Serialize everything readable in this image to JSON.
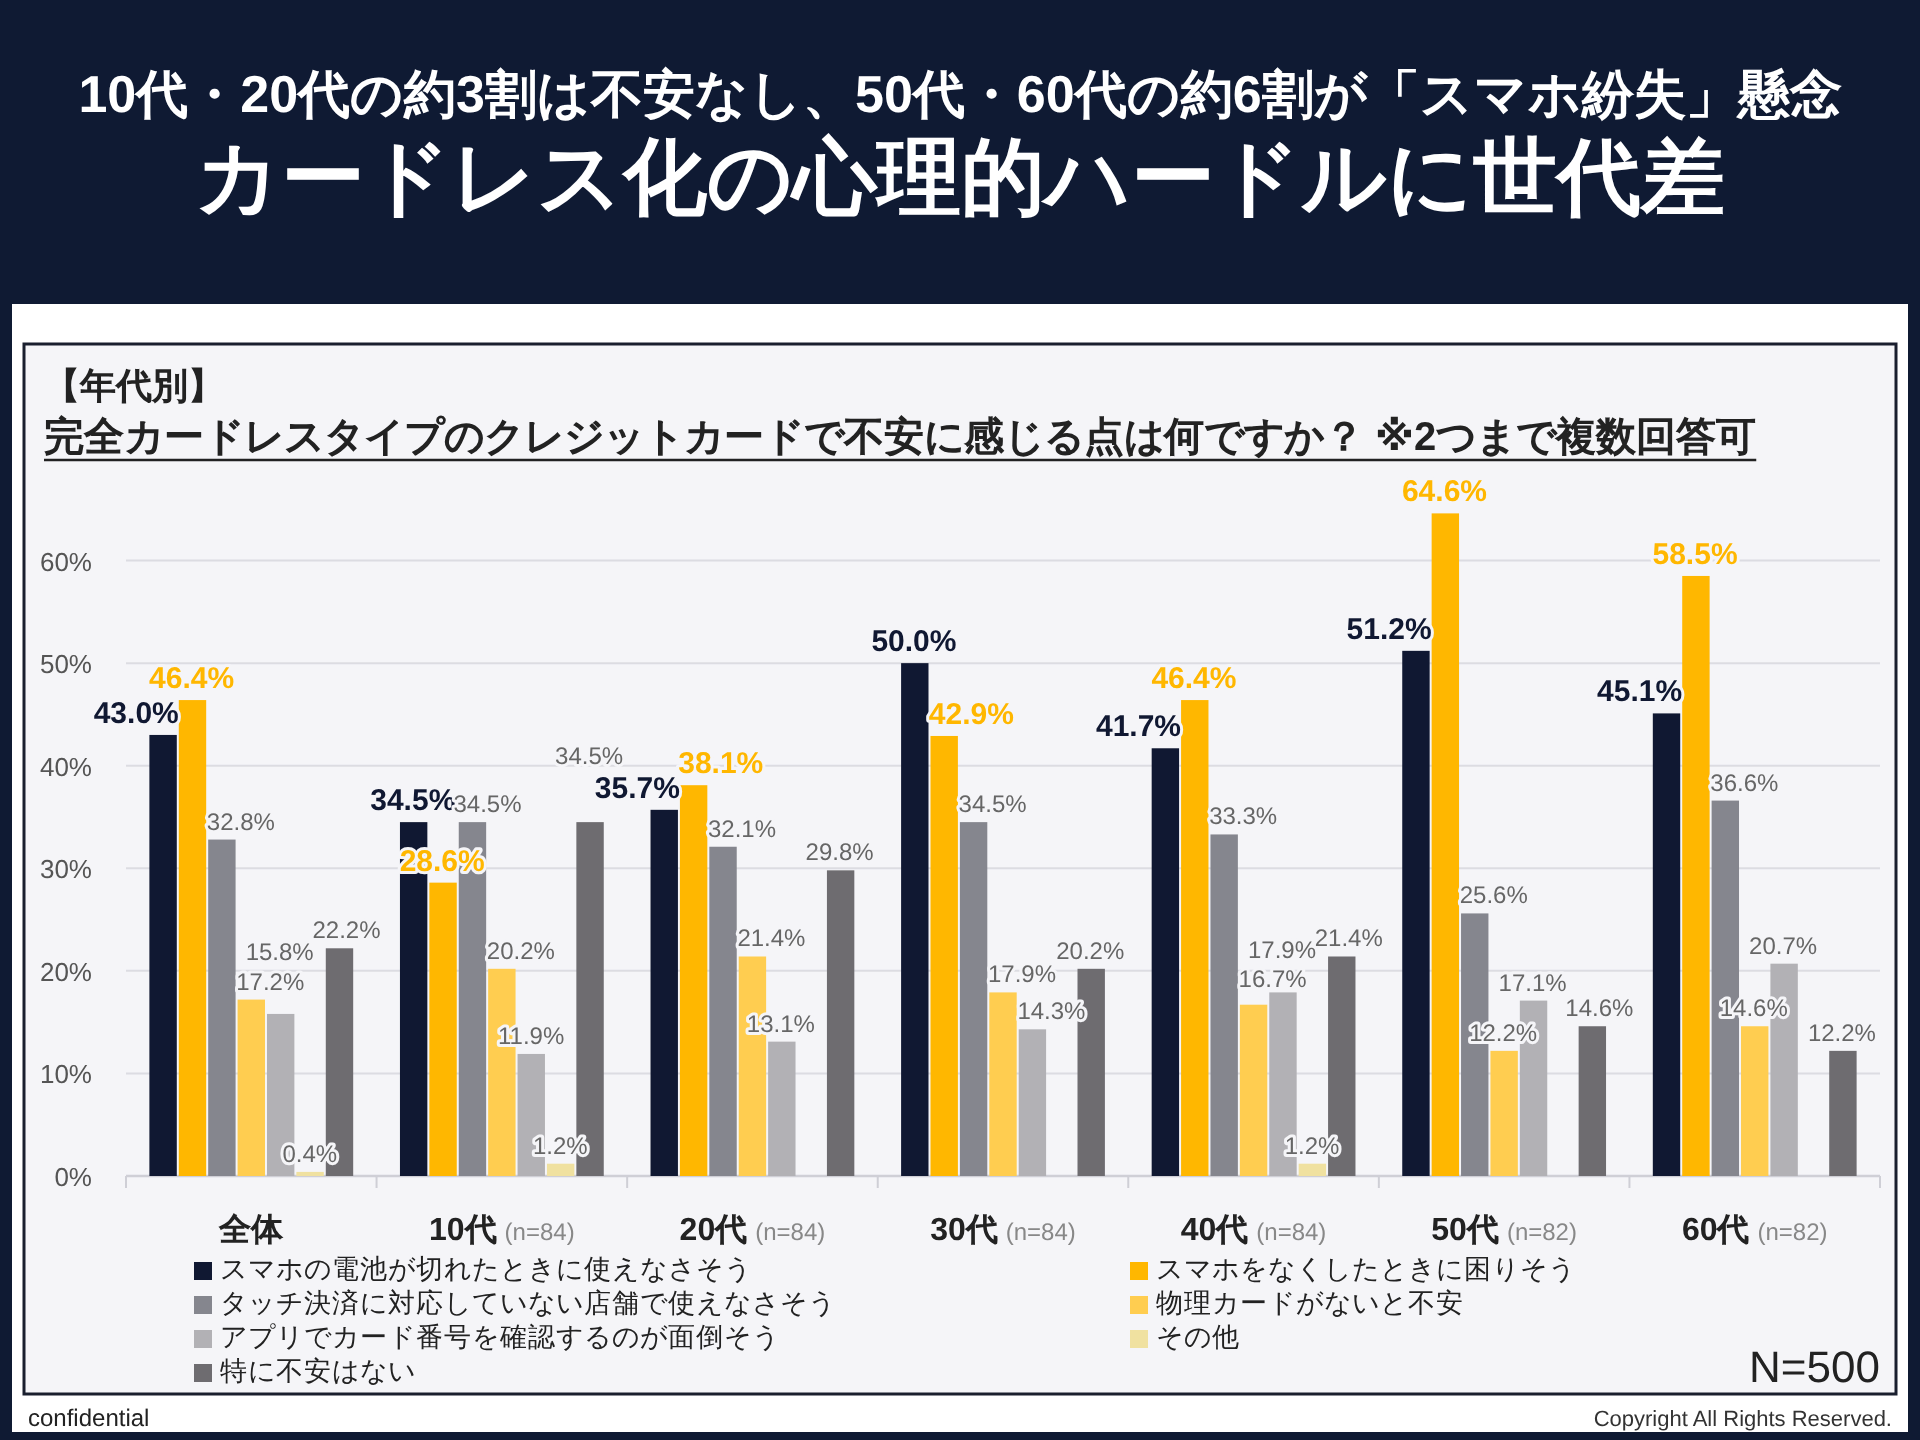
{
  "chart_data": {
    "type": "bar",
    "title": "カードレス化の心理的ハードルに世代差",
    "subtitle": "10代・20代の約3割は不安なし、50代・60代の約6割が「スマホ紛失」懸念",
    "categories": [
      "全体",
      "10代 (n=84)",
      "20代 (n=84)",
      "30代 (n=84)",
      "40代 (n=84)",
      "50代 (n=82)",
      "60代 (n=82)"
    ],
    "series": [
      {
        "name": "スマホの電池が切れたときに使えなさそう",
        "color": "#101832",
        "values": [
          43.0,
          34.5,
          35.7,
          50.0,
          41.7,
          51.2,
          45.1
        ],
        "value_labels": [
          "43.0%",
          "34.5%",
          "35.7%",
          "50.0%",
          "41.7%",
          "51.2%",
          "45.1%"
        ]
      },
      {
        "name": "スマホをなくしたときに困りそう",
        "color": "#ffb700",
        "values": [
          46.4,
          28.6,
          38.1,
          42.9,
          46.4,
          64.6,
          58.5
        ],
        "value_labels": [
          "46.4%",
          "28.6%",
          "38.1%",
          "42.9%",
          "46.4%",
          "64.6%",
          "58.5%"
        ]
      },
      {
        "name": "タッチ決済に対応していない店舗で使えなさそう",
        "color": "#85868e",
        "values": [
          32.8,
          34.5,
          32.1,
          34.5,
          33.3,
          25.6,
          36.6
        ],
        "value_labels": [
          "32.8%",
          "34.5%",
          "32.1%",
          "34.5%",
          "33.3%",
          "25.6%",
          "36.6%"
        ]
      },
      {
        "name": "物理カードがないと不安",
        "color": "#ffcd50",
        "values": [
          17.2,
          20.2,
          21.4,
          17.9,
          16.7,
          12.2,
          14.6
        ],
        "value_labels": [
          "17.2%",
          "20.2%",
          "21.4%",
          "17.9%",
          "16.7%",
          "12.2%",
          "14.6%"
        ]
      },
      {
        "name": "アプリでカード番号を確認するのが面倒そう",
        "color": "#b2b1b5",
        "values": [
          15.8,
          11.9,
          13.1,
          14.3,
          17.9,
          17.1,
          20.7
        ],
        "value_labels": [
          "15.8%",
          "11.9%",
          "13.1%",
          "14.3%",
          "17.9%",
          "17.1%",
          "20.7%"
        ]
      },
      {
        "name": "その他",
        "color": "#f0e1a0",
        "values": [
          0.4,
          1.2,
          null,
          null,
          1.2,
          null,
          null
        ],
        "value_labels": [
          "0.4%",
          "1.2%",
          null,
          null,
          "1.2%",
          null,
          null
        ]
      },
      {
        "name": "特に不安はない",
        "color": "#6e6c70",
        "values": [
          22.2,
          34.5,
          29.8,
          20.2,
          21.4,
          14.6,
          12.2
        ],
        "value_labels": [
          "22.2%",
          "34.5%",
          "29.8%",
          "20.2%",
          "21.4%",
          "14.6%",
          "12.2%"
        ]
      }
    ],
    "ylim": [
      0,
      70
    ],
    "yticks": [
      {
        "value": 0,
        "label": "0%"
      },
      {
        "value": 10,
        "label": "10%"
      },
      {
        "value": 20,
        "label": "20%"
      },
      {
        "value": 30,
        "label": "30%"
      },
      {
        "value": 40,
        "label": "40%"
      },
      {
        "value": 50,
        "label": "50%"
      },
      {
        "value": 60,
        "label": "60%"
      }
    ],
    "grid": "y",
    "legend": "bottom",
    "annotations": [
      "【年代別】",
      "完全カードレスタイプのクレジットカードで不安に感じる点は何ですか？ ※2つまで複数回答可",
      "N=500",
      "confidential",
      "Copyright All Rights Reserved."
    ]
  }
}
